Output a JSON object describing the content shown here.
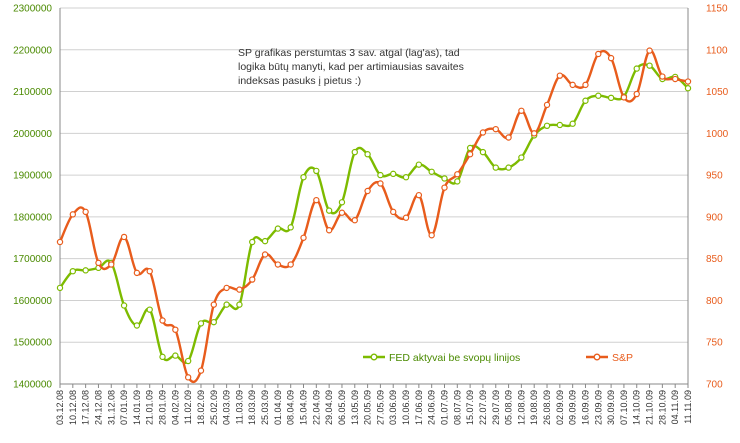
{
  "chart_data": {
    "type": "line",
    "annotation": [
      "SP grafikas perstumtas 3 sav. atgal (lag'as), tad",
      "logika būtų manyti, kad per artimiausias savaites",
      "indeksas pasuks į pietus :)"
    ],
    "categories": [
      "03.12.08",
      "10.12.08",
      "17.12.08",
      "24.12.08",
      "31.12.08",
      "07.01.09",
      "14.01.09",
      "21.01.09",
      "28.01.09",
      "04.02.09",
      "11.02.09",
      "18.02.09",
      "25.02.09",
      "04.03.09",
      "11.03.09",
      "18.03.09",
      "25.03.09",
      "01.04.09",
      "08.04.09",
      "15.04.09",
      "22.04.09",
      "29.04.09",
      "06.05.09",
      "13.05.09",
      "20.05.09",
      "27.05.09",
      "03.06.09",
      "10.06.09",
      "17.06.09",
      "24.06.09",
      "01.07.09",
      "08.07.09",
      "15.07.09",
      "22.07.09",
      "29.07.09",
      "05.08.09",
      "12.08.09",
      "19.08.09",
      "26.08.09",
      "02.09.09",
      "09.09.09",
      "16.09.09",
      "23.09.09",
      "30.09.09",
      "07.10.09",
      "14.10.09",
      "21.10.09",
      "28.10.09",
      "04.11.09",
      "11.11.09"
    ],
    "y_left": {
      "min": 1400000,
      "max": 2300000,
      "ticks": [
        1400000,
        1500000,
        1600000,
        1700000,
        1800000,
        1900000,
        2000000,
        2100000,
        2200000,
        2300000
      ]
    },
    "y_right": {
      "min": 700,
      "max": 1150,
      "ticks": [
        700,
        750,
        800,
        850,
        900,
        950,
        1000,
        1050,
        1100,
        1150
      ]
    },
    "series": [
      {
        "name": "FED aktyvai be svopų linijos",
        "axis": "left",
        "color": "#7dbb00",
        "values": [
          1630000,
          1670000,
          1672000,
          1678000,
          1690000,
          1588000,
          1540000,
          1578000,
          1465000,
          1468000,
          1455000,
          1545000,
          1548000,
          1590000,
          1590000,
          1740000,
          1742000,
          1772000,
          1775000,
          1895000,
          1910000,
          1815000,
          1835000,
          1955000,
          1950000,
          1900000,
          1903000,
          1895000,
          1925000,
          1908000,
          1892000,
          1885000,
          1965000,
          1955000,
          1918000,
          1918000,
          1942000,
          1995000,
          2018000,
          2020000,
          2023000,
          2078000,
          2090000,
          2085000,
          2088000,
          2155000,
          2162000,
          2130000,
          2135000,
          2108000
        ]
      },
      {
        "name": "S&P",
        "axis": "right",
        "color": "#e85c1c",
        "values": [
          870,
          903,
          906,
          845,
          843,
          876,
          833,
          835,
          776,
          765,
          708,
          716,
          795,
          815,
          813,
          825,
          855,
          843,
          843,
          875,
          920,
          884,
          905,
          896,
          931,
          940,
          906,
          899,
          926,
          878,
          935,
          951,
          975,
          1001,
          1005,
          995,
          1027,
          1000,
          1034,
          1069,
          1058,
          1058,
          1095,
          1090,
          1043,
          1047,
          1099,
          1068,
          1065,
          1062
        ]
      }
    ]
  }
}
